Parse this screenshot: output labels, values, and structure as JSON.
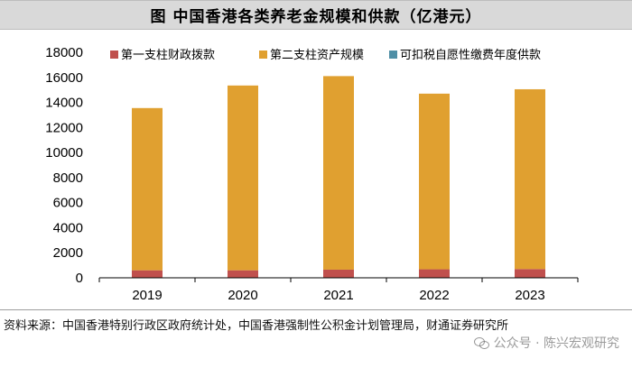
{
  "header": {
    "title": "图  中国香港各类养老金规模和供款（亿港元）"
  },
  "chart_data": {
    "type": "bar",
    "stacked": true,
    "categories": [
      "2019",
      "2020",
      "2021",
      "2022",
      "2023"
    ],
    "series": [
      {
        "name": "第一支柱财政拨款",
        "color": "#c0504d",
        "values": [
          600,
          600,
          650,
          680,
          700
        ]
      },
      {
        "name": "第二支柱资产规模",
        "color": "#e0a030",
        "values": [
          12950,
          14750,
          15450,
          14020,
          14350
        ]
      },
      {
        "name": "可扣税自愿性缴费年度供款",
        "color": "#4f8fa6",
        "values": [
          0,
          0,
          0,
          0,
          0
        ]
      }
    ],
    "ylim": [
      0,
      18000
    ],
    "yticks": [
      "0",
      "2000",
      "4000",
      "6000",
      "8000",
      "10000",
      "12000",
      "14000",
      "16000",
      "18000"
    ],
    "legend_position": "top",
    "grid": false
  },
  "footer": {
    "source": "资料来源：中国香港特别行政区政府统计处，中国香港强制性公积金计划管理局，财通证券研究所",
    "watermark": "公众号 · 陈兴宏观研究"
  }
}
